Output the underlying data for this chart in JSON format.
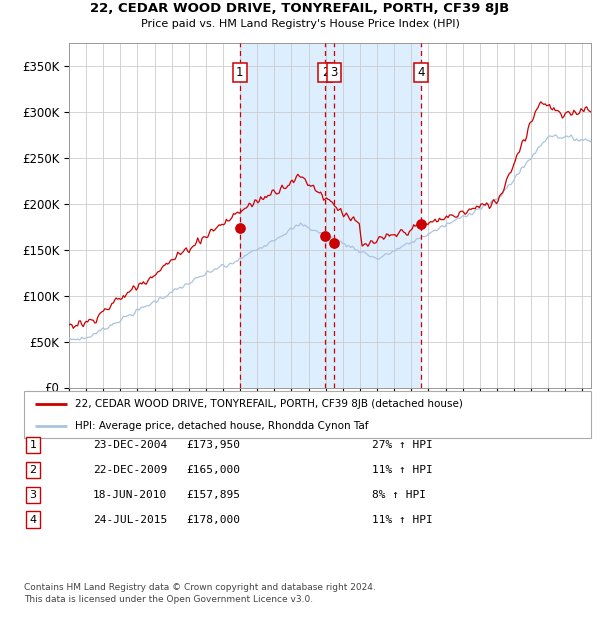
{
  "title": "22, CEDAR WOOD DRIVE, TONYREFAIL, PORTH, CF39 8JB",
  "subtitle": "Price paid vs. HM Land Registry's House Price Index (HPI)",
  "footer": "Contains HM Land Registry data © Crown copyright and database right 2024.\nThis data is licensed under the Open Government Licence v3.0.",
  "legend_line1": "22, CEDAR WOOD DRIVE, TONYREFAIL, PORTH, CF39 8JB (detached house)",
  "legend_line2": "HPI: Average price, detached house, Rhondda Cynon Taf",
  "transactions": [
    {
      "num": 1,
      "date": "23-DEC-2004",
      "price": 173950,
      "pct": "27%",
      "dir": "↑",
      "year": 2004.98
    },
    {
      "num": 2,
      "date": "22-DEC-2009",
      "price": 165000,
      "pct": "11%",
      "dir": "↑",
      "year": 2009.98
    },
    {
      "num": 3,
      "date": "18-JUN-2010",
      "price": 157895,
      "pct": "8%",
      "dir": "↑",
      "year": 2010.46
    },
    {
      "num": 4,
      "date": "24-JUL-2015",
      "price": 178000,
      "pct": "11%",
      "dir": "↑",
      "year": 2015.56
    }
  ],
  "shaded_region": [
    2004.98,
    2015.56
  ],
  "hpi_color": "#aac4e0",
  "price_color": "#cc0000",
  "dot_color": "#cc0000",
  "vline_color": "#cc0000",
  "grid_color": "#cccccc",
  "bg_color": "#ffffff",
  "chart_bg": "#ffffff",
  "shaded_color": "#ddeeff",
  "ylim": [
    0,
    375000
  ],
  "yticks": [
    0,
    50000,
    100000,
    150000,
    200000,
    250000,
    300000,
    350000
  ],
  "ytick_labels": [
    "£0",
    "£50K",
    "£100K",
    "£150K",
    "£200K",
    "£250K",
    "£300K",
    "£350K"
  ],
  "xlim_start": 1995.0,
  "xlim_end": 2025.5
}
